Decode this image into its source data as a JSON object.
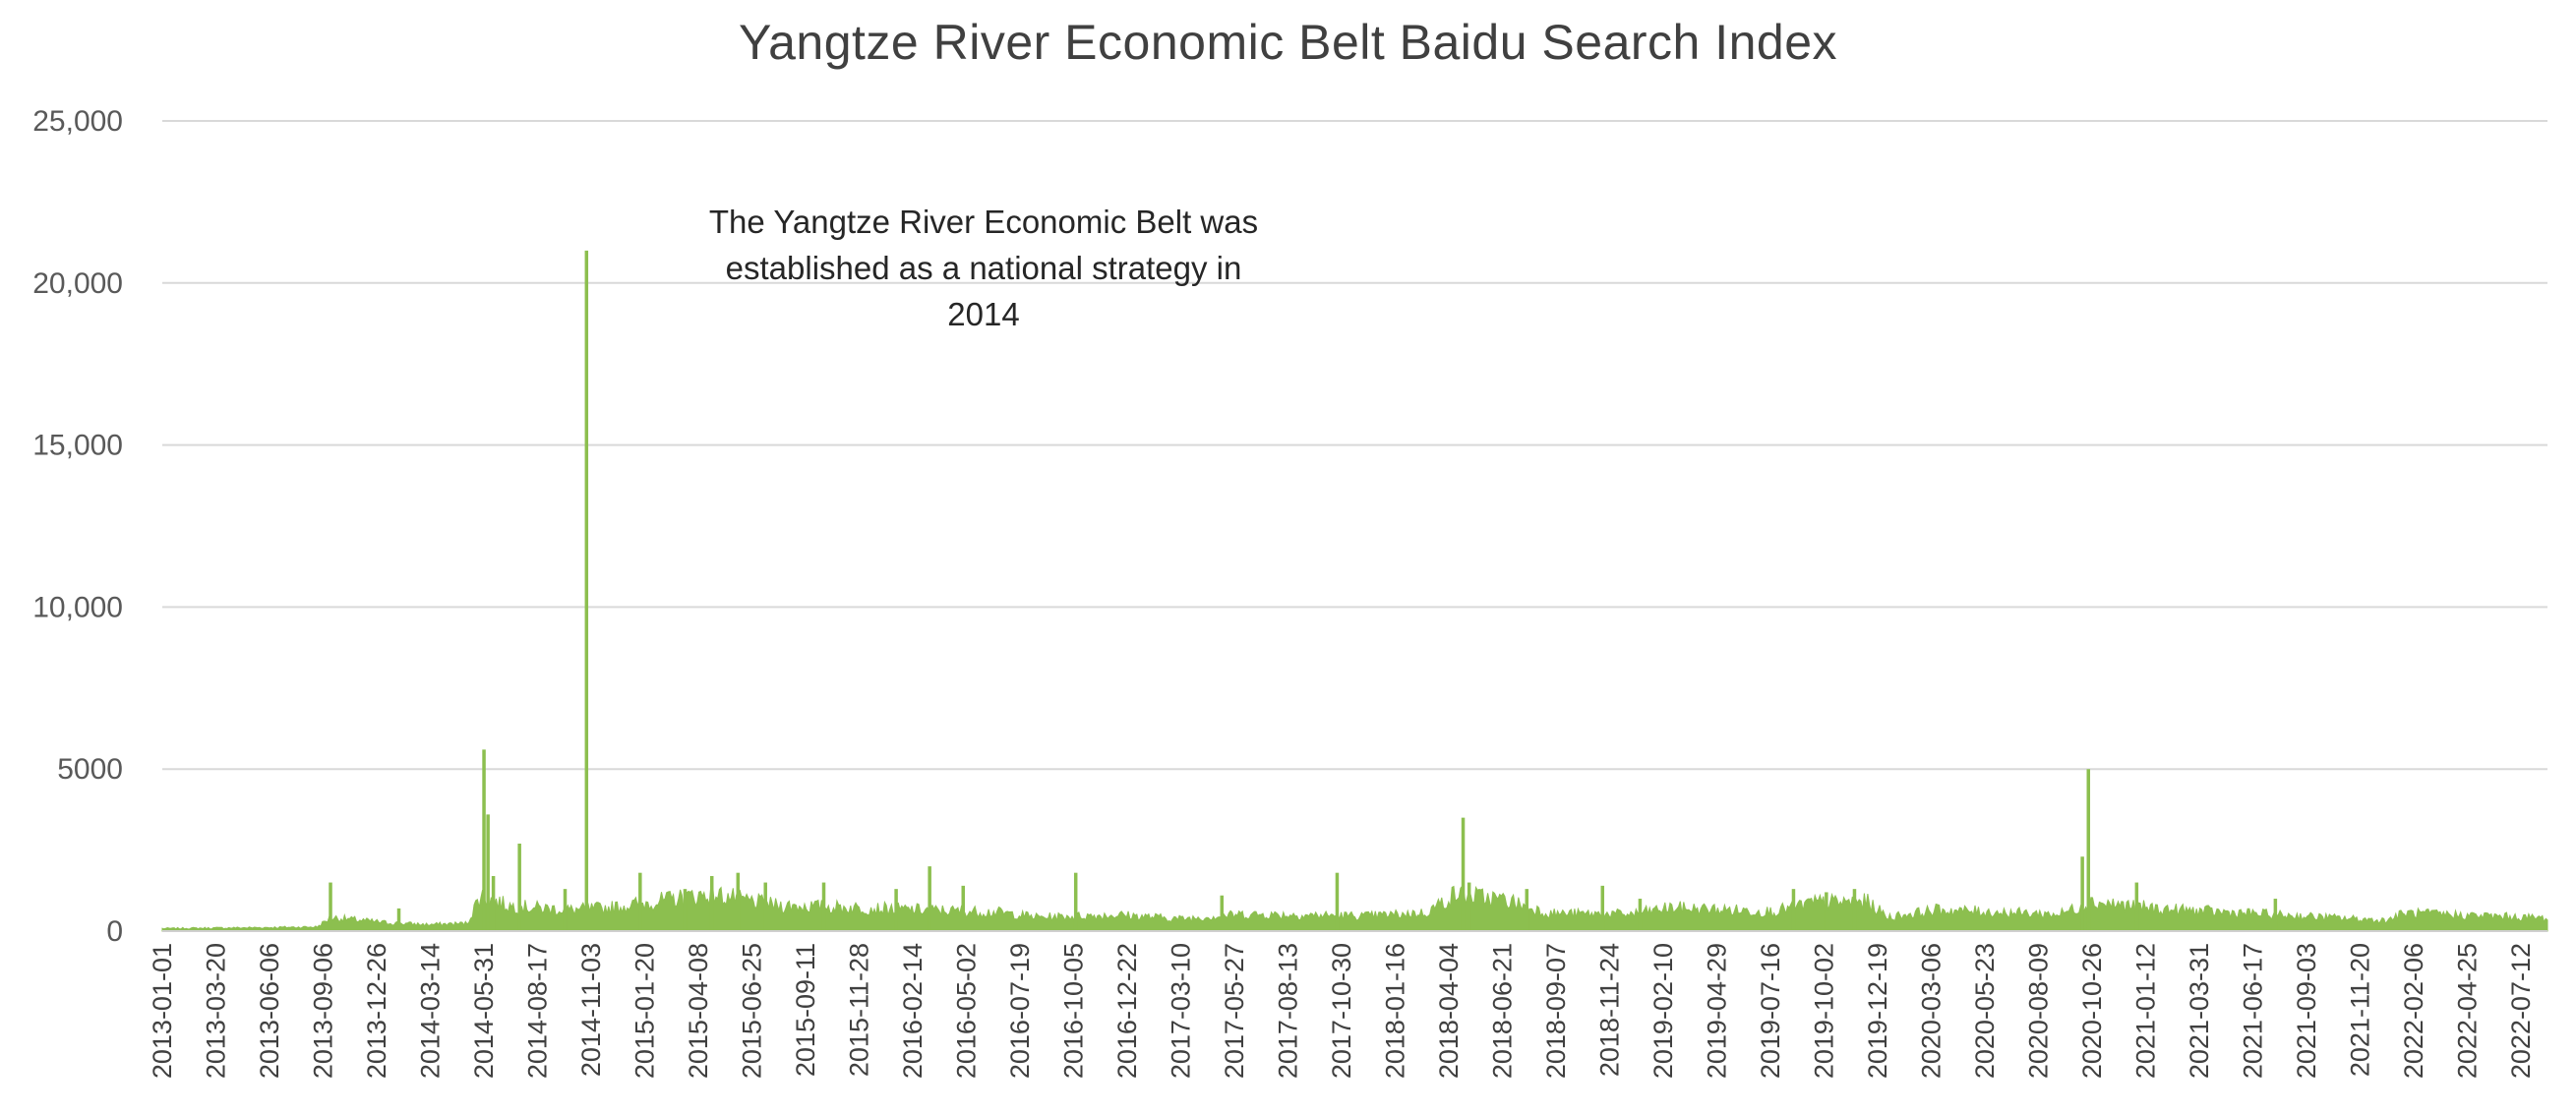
{
  "chart_data": {
    "type": "area",
    "title": "Yangtze River Economic Belt Baidu Search Index",
    "xlabel": "",
    "ylabel": "",
    "ylim": [
      0,
      25000
    ],
    "grid": "horizontal",
    "legend": "none",
    "color": "#8cbf4f",
    "y_ticks": [
      "25,000",
      "20,000",
      "15,000",
      "10,000",
      "5000",
      "0"
    ],
    "y_tick_values": [
      25000,
      20000,
      15000,
      10000,
      5000,
      0
    ],
    "x_tick_labels": [
      "2013-01-01",
      "2013-03-20",
      "2013-06-06",
      "2013-09-06",
      "2013-12-26",
      "2014-03-14",
      "2014-05-31",
      "2014-08-17",
      "2014-11-03",
      "2015-01-20",
      "2015-04-08",
      "2015-06-25",
      "2015-09-11",
      "2015-11-28",
      "2016-02-14",
      "2016-05-02",
      "2016-07-19",
      "2016-10-05",
      "2016-12-22",
      "2017-03-10",
      "2017-05-27",
      "2017-08-13",
      "2017-10-30",
      "2018-01-16",
      "2018-04-04",
      "2018-06-21",
      "2018-09-07",
      "2018-11-24",
      "2019-02-10",
      "2019-04-29",
      "2019-07-16",
      "2019-10-02",
      "2019-12-19",
      "2020-03-06",
      "2020-05-23",
      "2020-08-09",
      "2020-10-26",
      "2021-01-12",
      "2021-03-31",
      "2021-06-17",
      "2021-09-03",
      "2021-11-20",
      "2022-02-06",
      "2022-04-25",
      "2022-07-12"
    ],
    "x_range": [
      "2013-01-01",
      "2022-09-30"
    ],
    "annotation": "The Yangtze River Economic Belt was established as a national strategy in 2014",
    "series": [
      {
        "baseline": [
          {
            "x": "2013-01-01",
            "y": 80
          },
          {
            "x": "2013-06-01",
            "y": 110
          },
          {
            "x": "2013-08-20",
            "y": 130
          },
          {
            "x": "2013-09-10",
            "y": 420
          },
          {
            "x": "2013-12-01",
            "y": 260
          },
          {
            "x": "2014-02-01",
            "y": 200
          },
          {
            "x": "2014-04-01",
            "y": 240
          },
          {
            "x": "2014-04-20",
            "y": 1100
          },
          {
            "x": "2014-06-01",
            "y": 780
          },
          {
            "x": "2014-09-01",
            "y": 650
          },
          {
            "x": "2014-11-01",
            "y": 720
          },
          {
            "x": "2015-04-01",
            "y": 1150
          },
          {
            "x": "2015-07-01",
            "y": 800
          },
          {
            "x": "2015-12-01",
            "y": 700
          },
          {
            "x": "2016-06-01",
            "y": 580
          },
          {
            "x": "2016-08-01",
            "y": 430
          },
          {
            "x": "2016-12-01",
            "y": 500
          },
          {
            "x": "2017-03-01",
            "y": 380
          },
          {
            "x": "2017-06-01",
            "y": 520
          },
          {
            "x": "2017-12-01",
            "y": 470
          },
          {
            "x": "2018-03-01",
            "y": 560
          },
          {
            "x": "2018-04-15",
            "y": 1150
          },
          {
            "x": "2018-07-01",
            "y": 950
          },
          {
            "x": "2018-09-01",
            "y": 550
          },
          {
            "x": "2019-01-01",
            "y": 520
          },
          {
            "x": "2019-03-01",
            "y": 720
          },
          {
            "x": "2019-08-01",
            "y": 600
          },
          {
            "x": "2019-10-01",
            "y": 880
          },
          {
            "x": "2019-12-20",
            "y": 900
          },
          {
            "x": "2020-01-20",
            "y": 430
          },
          {
            "x": "2020-04-01",
            "y": 650
          },
          {
            "x": "2020-10-01",
            "y": 520
          },
          {
            "x": "2020-11-20",
            "y": 900
          },
          {
            "x": "2021-03-01",
            "y": 680
          },
          {
            "x": "2021-07-01",
            "y": 560
          },
          {
            "x": "2021-11-01",
            "y": 430
          },
          {
            "x": "2022-02-01",
            "y": 330
          },
          {
            "x": "2022-03-01",
            "y": 560
          },
          {
            "x": "2022-09-30",
            "y": 400
          }
        ],
        "spikes": [
          {
            "x": "2013-09-09",
            "y": 1500
          },
          {
            "x": "2013-12-20",
            "y": 700
          },
          {
            "x": "2014-04-26",
            "y": 5600
          },
          {
            "x": "2014-05-02",
            "y": 3600
          },
          {
            "x": "2014-05-10",
            "y": 1700
          },
          {
            "x": "2014-06-18",
            "y": 2700
          },
          {
            "x": "2014-08-25",
            "y": 1300
          },
          {
            "x": "2014-09-26",
            "y": 21000
          },
          {
            "x": "2014-12-15",
            "y": 1800
          },
          {
            "x": "2015-02-20",
            "y": 1300
          },
          {
            "x": "2015-04-01",
            "y": 1700
          },
          {
            "x": "2015-05-10",
            "y": 1800
          },
          {
            "x": "2015-06-20",
            "y": 1500
          },
          {
            "x": "2015-09-15",
            "y": 1500
          },
          {
            "x": "2016-01-01",
            "y": 1300
          },
          {
            "x": "2016-02-20",
            "y": 2000
          },
          {
            "x": "2016-04-10",
            "y": 1400
          },
          {
            "x": "2016-09-25",
            "y": 1800
          },
          {
            "x": "2017-05-01",
            "y": 1100
          },
          {
            "x": "2017-10-20",
            "y": 1800
          },
          {
            "x": "2018-04-26",
            "y": 3500
          },
          {
            "x": "2018-05-05",
            "y": 1500
          },
          {
            "x": "2018-07-30",
            "y": 1300
          },
          {
            "x": "2018-11-20",
            "y": 1400
          },
          {
            "x": "2019-01-15",
            "y": 1000
          },
          {
            "x": "2019-09-01",
            "y": 1300
          },
          {
            "x": "2019-10-20",
            "y": 1200
          },
          {
            "x": "2019-12-01",
            "y": 1300
          },
          {
            "x": "2020-11-14",
            "y": 5000
          },
          {
            "x": "2020-11-05",
            "y": 2300
          },
          {
            "x": "2021-01-25",
            "y": 1500
          },
          {
            "x": "2021-08-20",
            "y": 1000
          }
        ]
      }
    ]
  }
}
